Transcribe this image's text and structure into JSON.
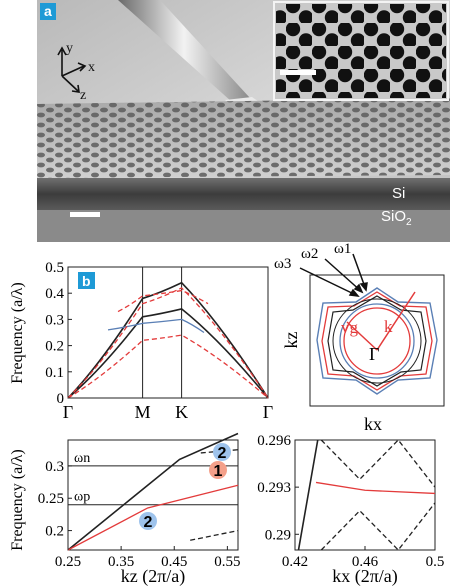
{
  "panel_a": {
    "label": "a",
    "axes": {
      "y": "y",
      "x": "x",
      "z": "z"
    },
    "materials": {
      "top": "Si",
      "bottom": "SiO",
      "bottom_sub": "2"
    }
  },
  "panel_b": {
    "label": "b"
  },
  "colors": {
    "label_badge": "#1e9ad6",
    "red": "#e33b3b",
    "blue": "#5a7fb5",
    "black": "#222222",
    "badge_blue": "#9ec3ec",
    "badge_red": "#f4a08a"
  },
  "icons": [
    "axis-triad-icon",
    "scale-bar-icon"
  ],
  "chart_data": [
    {
      "type": "line",
      "name": "band-structure",
      "ylabel": "Frequency (a/λ)",
      "ylim": [
        0,
        0.5
      ],
      "yticks": [
        "0",
        "0.1",
        "0.2",
        "0.3",
        "0.4",
        "0.5"
      ],
      "categories": [
        "Γ",
        "M",
        "K",
        "Γ"
      ],
      "k_positions": [
        0,
        0.373,
        0.568,
        1.0
      ],
      "series": [
        {
          "color": "black",
          "style": "solid",
          "x": [
            0,
            0.373,
            0.568,
            1.0
          ],
          "y": [
            0,
            0.38,
            0.44,
            0
          ]
        },
        {
          "color": "black",
          "style": "solid",
          "x": [
            0,
            0.373,
            0.568,
            1.0
          ],
          "y": [
            0,
            0.31,
            0.34,
            0
          ]
        },
        {
          "color": "blue",
          "style": "solid",
          "x": [
            0.2,
            0.373,
            0.568,
            0.68
          ],
          "y": [
            0.26,
            0.285,
            0.3,
            0.25
          ]
        },
        {
          "color": "red",
          "style": "dashed",
          "x": [
            0,
            0.373,
            0.568,
            1.0
          ],
          "y": [
            0,
            0.36,
            0.42,
            0
          ]
        },
        {
          "color": "red",
          "style": "dashed",
          "x": [
            0,
            0.373,
            0.568,
            1.0
          ],
          "y": [
            0,
            0.22,
            0.24,
            0
          ]
        },
        {
          "color": "red",
          "style": "dashed",
          "x": [
            0.25,
            0.373,
            0.568,
            0.7
          ],
          "y": [
            0.33,
            0.39,
            0.41,
            0.36
          ]
        }
      ]
    },
    {
      "type": "line",
      "name": "isofrequency-contours",
      "xlabel": "kx",
      "ylabel": "kz",
      "annotations": {
        "omega3": "ω3",
        "omega2": "ω2",
        "omega1": "ω1",
        "vg": "vg",
        "k": "k",
        "gamma": "Γ"
      }
    },
    {
      "type": "line",
      "name": "dispersion-kz",
      "xlabel": "kz (2π/a)",
      "ylabel": "Frequency (a/λ)",
      "xlim": [
        0.25,
        0.57
      ],
      "ylim": [
        0.17,
        0.34
      ],
      "xticks": [
        "0.25",
        "0.35",
        "0.45",
        "0.55"
      ],
      "yticks": [
        "0.2",
        "0.25",
        "0.3"
      ],
      "hlines": [
        {
          "label": "ωn",
          "y": 0.3
        },
        {
          "label": "ωp",
          "y": 0.24
        }
      ],
      "badges": [
        {
          "text": "2",
          "color": "blue"
        },
        {
          "text": "1",
          "color": "red"
        },
        {
          "text": "2",
          "color": "blue"
        }
      ],
      "series": [
        {
          "color": "black",
          "style": "solid",
          "x": [
            0.25,
            0.46,
            0.57
          ],
          "y": [
            0.17,
            0.31,
            0.35
          ]
        },
        {
          "color": "red",
          "style": "solid",
          "x": [
            0.25,
            0.4,
            0.57
          ],
          "y": [
            0.17,
            0.235,
            0.27
          ]
        },
        {
          "color": "black",
          "style": "dashed",
          "x": [
            0.5,
            0.57
          ],
          "y": [
            0.32,
            0.325
          ]
        },
        {
          "color": "black",
          "style": "dashed",
          "x": [
            0.48,
            0.57
          ],
          "y": [
            0.185,
            0.2
          ]
        }
      ]
    },
    {
      "type": "line",
      "name": "dispersion-kx",
      "xlabel": "kx (2π/a)",
      "xlim": [
        0.42,
        0.5
      ],
      "ylim": [
        0.289,
        0.296
      ],
      "xticks": [
        "0.42",
        "0.46",
        "0.5"
      ],
      "yticks": [
        "0.29",
        "0.293",
        "0.296"
      ],
      "series": [
        {
          "color": "black",
          "style": "solid",
          "x": [
            0.422,
            0.433
          ],
          "y": [
            0.289,
            0.296
          ]
        },
        {
          "color": "red",
          "style": "solid",
          "x": [
            0.432,
            0.46,
            0.5
          ],
          "y": [
            0.2933,
            0.2928,
            0.2926
          ]
        },
        {
          "color": "black",
          "style": "dashed",
          "x": [
            0.435,
            0.457,
            0.479,
            0.5
          ],
          "y": [
            0.296,
            0.2935,
            0.296,
            0.293
          ]
        },
        {
          "color": "black",
          "style": "dashed",
          "x": [
            0.435,
            0.457,
            0.479,
            0.5
          ],
          "y": [
            0.289,
            0.2915,
            0.289,
            0.292
          ]
        }
      ]
    }
  ]
}
